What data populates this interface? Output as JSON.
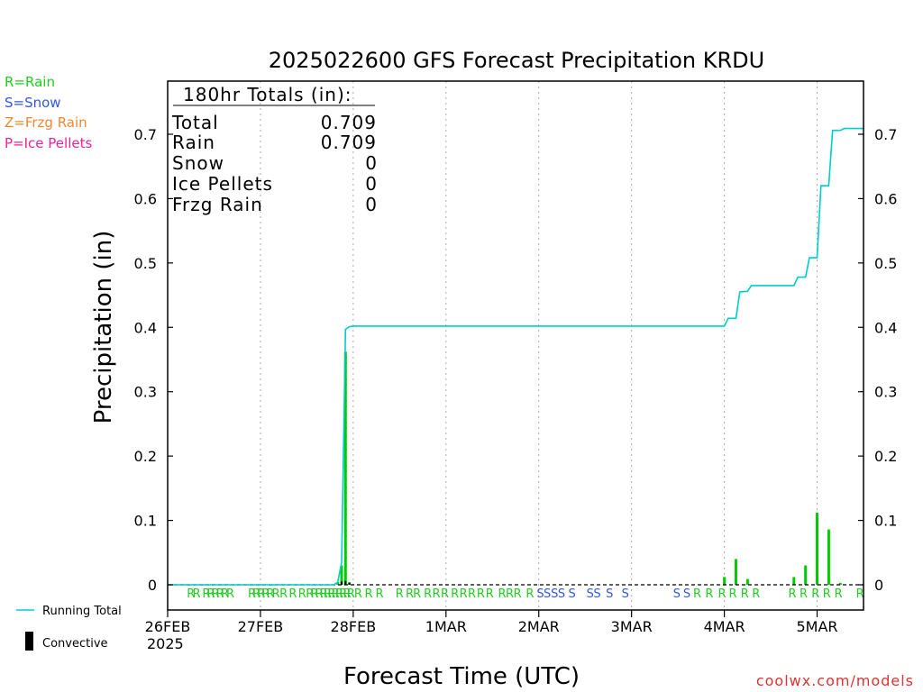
{
  "chart_data": {
    "type": "bar",
    "title": "2025022600 GFS Forecast Precipitation KRDU",
    "xlabel": "Forecast Time (UTC)",
    "ylabel": "Precipitation (in)",
    "ylim": [
      0,
      0.78
    ],
    "xlim_hours": [
      0,
      180
    ],
    "grid": "vertical dotted at day boundaries",
    "legend_types": [
      {
        "text": "R=Rain",
        "color": "#22cc22"
      },
      {
        "text": "S=Snow",
        "color": "#3355ee"
      },
      {
        "text": "Z=Frzg Rain",
        "color": "#ee8833"
      },
      {
        "text": "P=Ice Pellets",
        "color": "#ee2299"
      }
    ],
    "legend_series": [
      {
        "text": "Running Total",
        "color": "#00cccc"
      },
      {
        "text": "Convective",
        "color": "#000000"
      }
    ],
    "yticks": [
      "0",
      "0.1",
      "0.2",
      "0.3",
      "0.4",
      "0.5",
      "0.6",
      "0.7"
    ],
    "xticks": [
      {
        "hour": 0,
        "label": "26FEB"
      },
      {
        "hour": 24,
        "label": "27FEB"
      },
      {
        "hour": 48,
        "label": "28FEB"
      },
      {
        "hour": 72,
        "label": "1MAR"
      },
      {
        "hour": 96,
        "label": "2MAR"
      },
      {
        "hour": 120,
        "label": "3MAR"
      },
      {
        "hour": 144,
        "label": "4MAR"
      },
      {
        "hour": 168,
        "label": "5MAR"
      }
    ],
    "year_label": "2025",
    "totals_box": {
      "header": "180hr Totals (in):",
      "rows": [
        {
          "label": "Total",
          "value": "0.709"
        },
        {
          "label": "Rain",
          "value": "0.709"
        },
        {
          "label": "Snow",
          "value": "0"
        },
        {
          "label": "Ice Pellets",
          "value": "0"
        },
        {
          "label": "Frzg Rain",
          "value": "0"
        }
      ]
    },
    "precip_bars": [
      {
        "hour": 44,
        "value": 0.004
      },
      {
        "hour": 45,
        "value": 0.03
      },
      {
        "hour": 46,
        "value": 0.362
      },
      {
        "hour": 47,
        "value": 0.004
      },
      {
        "hour": 144,
        "value": 0.012
      },
      {
        "hour": 147,
        "value": 0.04
      },
      {
        "hour": 150,
        "value": 0.009
      },
      {
        "hour": 162,
        "value": 0.012
      },
      {
        "hour": 165,
        "value": 0.03
      },
      {
        "hour": 168,
        "value": 0.112
      },
      {
        "hour": 171,
        "value": 0.086
      },
      {
        "hour": 174,
        "value": 0.003
      }
    ],
    "convective_bars": [
      {
        "hour": 45,
        "value": 0.005
      },
      {
        "hour": 46,
        "value": 0.006
      },
      {
        "hour": 47,
        "value": 0.003
      }
    ],
    "running_total": [
      [
        0,
        0
      ],
      [
        43,
        0
      ],
      [
        44,
        0.004
      ],
      [
        45,
        0.035
      ],
      [
        46,
        0.397
      ],
      [
        47,
        0.401
      ],
      [
        48,
        0.402
      ],
      [
        144,
        0.402
      ],
      [
        145,
        0.414
      ],
      [
        147,
        0.414
      ],
      [
        148,
        0.455
      ],
      [
        150,
        0.456
      ],
      [
        151,
        0.465
      ],
      [
        162,
        0.465
      ],
      [
        163,
        0.478
      ],
      [
        165,
        0.478
      ],
      [
        166,
        0.508
      ],
      [
        168,
        0.508
      ],
      [
        169,
        0.62
      ],
      [
        171,
        0.62
      ],
      [
        172,
        0.706
      ],
      [
        174,
        0.706
      ],
      [
        175,
        0.709
      ],
      [
        180,
        0.709
      ]
    ],
    "precip_type_markers": [
      {
        "hour": 6,
        "type": "R"
      },
      {
        "hour": 7.5,
        "type": "R"
      },
      {
        "hour": 10,
        "type": "R"
      },
      {
        "hour": 11.2,
        "type": "R"
      },
      {
        "hour": 12.4,
        "type": "R"
      },
      {
        "hour": 13.6,
        "type": "R"
      },
      {
        "hour": 14.8,
        "type": "R"
      },
      {
        "hour": 16.2,
        "type": "R"
      },
      {
        "hour": 21.8,
        "type": "R"
      },
      {
        "hour": 23,
        "type": "R"
      },
      {
        "hour": 24.2,
        "type": "R"
      },
      {
        "hour": 25.4,
        "type": "R"
      },
      {
        "hour": 26.6,
        "type": "R"
      },
      {
        "hour": 28,
        "type": "R"
      },
      {
        "hour": 30,
        "type": "R"
      },
      {
        "hour": 32.4,
        "type": "R"
      },
      {
        "hour": 34.8,
        "type": "R"
      },
      {
        "hour": 36.8,
        "type": "R"
      },
      {
        "hour": 38,
        "type": "R"
      },
      {
        "hour": 39.2,
        "type": "R"
      },
      {
        "hour": 40.4,
        "type": "R"
      },
      {
        "hour": 41.4,
        "type": "R"
      },
      {
        "hour": 42.4,
        "type": "R"
      },
      {
        "hour": 43.4,
        "type": "R"
      },
      {
        "hour": 44.4,
        "type": "R"
      },
      {
        "hour": 45.4,
        "type": "R"
      },
      {
        "hour": 46.4,
        "type": "R"
      },
      {
        "hour": 47.4,
        "type": "R"
      },
      {
        "hour": 49.3,
        "type": "R"
      },
      {
        "hour": 52,
        "type": "R"
      },
      {
        "hour": 54.8,
        "type": "R"
      },
      {
        "hour": 60,
        "type": "R"
      },
      {
        "hour": 62.6,
        "type": "R"
      },
      {
        "hour": 64.5,
        "type": "R"
      },
      {
        "hour": 67.3,
        "type": "R"
      },
      {
        "hour": 69.5,
        "type": "R"
      },
      {
        "hour": 71.7,
        "type": "R"
      },
      {
        "hour": 74.3,
        "type": "R"
      },
      {
        "hour": 76.5,
        "type": "R"
      },
      {
        "hour": 78.7,
        "type": "R"
      },
      {
        "hour": 81,
        "type": "R"
      },
      {
        "hour": 83.3,
        "type": "R"
      },
      {
        "hour": 86.5,
        "type": "R"
      },
      {
        "hour": 88.5,
        "type": "R"
      },
      {
        "hour": 90.5,
        "type": "R"
      },
      {
        "hour": 93.7,
        "type": "R"
      },
      {
        "hour": 96.4,
        "type": "S"
      },
      {
        "hour": 98.2,
        "type": "S"
      },
      {
        "hour": 100.1,
        "type": "S"
      },
      {
        "hour": 101.9,
        "type": "S"
      },
      {
        "hour": 104.6,
        "type": "S"
      },
      {
        "hour": 109.3,
        "type": "S"
      },
      {
        "hour": 111.1,
        "type": "S"
      },
      {
        "hour": 114.3,
        "type": "S"
      },
      {
        "hour": 118.4,
        "type": "S"
      },
      {
        "hour": 131.7,
        "type": "S"
      },
      {
        "hour": 134.3,
        "type": "S"
      },
      {
        "hour": 137,
        "type": "R"
      },
      {
        "hour": 140.1,
        "type": "R"
      },
      {
        "hour": 143.4,
        "type": "R"
      },
      {
        "hour": 146.2,
        "type": "R"
      },
      {
        "hour": 149.3,
        "type": "R"
      },
      {
        "hour": 152.2,
        "type": "R"
      },
      {
        "hour": 161.6,
        "type": "R"
      },
      {
        "hour": 164.5,
        "type": "R"
      },
      {
        "hour": 167.6,
        "type": "R"
      },
      {
        "hour": 170.5,
        "type": "R"
      },
      {
        "hour": 173.5,
        "type": "R"
      },
      {
        "hour": 179.1,
        "type": "R"
      }
    ],
    "type_colors": {
      "R": "#22cc22",
      "S": "#3355ee",
      "Z": "#ee8833",
      "P": "#ee2299"
    },
    "bar_color": "#00cc00",
    "running_total_color": "#00cccc",
    "watermark": "coolwx.com/models",
    "watermark_color": "#dd3333"
  }
}
